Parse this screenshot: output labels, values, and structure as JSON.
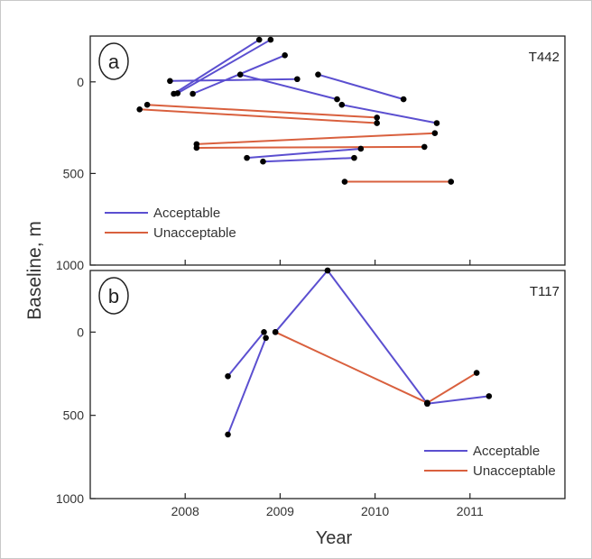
{
  "chart_data": {
    "type": "line",
    "xlabel": "Year",
    "ylabel": "Baseline, m",
    "xlim": [
      2007,
      2012
    ],
    "xticks": [
      "2008",
      "2009",
      "2010",
      "2011"
    ],
    "grid": false,
    "series": [
      {
        "name": "Acceptable",
        "color": "#5b4fd0"
      },
      {
        "name": "Unacceptable",
        "color": "#d9603e"
      }
    ],
    "panels": [
      {
        "label": "a",
        "title": "T442",
        "ylim": [
          -250,
          1000
        ],
        "yticks": [
          "0",
          "500",
          "1000"
        ],
        "legend": "bottom-left",
        "pairs": [
          {
            "x1": 2007.88,
            "y1": 65,
            "x2": 2008.78,
            "y2": -230,
            "type": "Acceptable"
          },
          {
            "x1": 2007.92,
            "y1": 62,
            "x2": 2008.9,
            "y2": -230,
            "type": "Acceptable"
          },
          {
            "x1": 2008.08,
            "y1": 65,
            "x2": 2009.05,
            "y2": -145,
            "type": "Acceptable"
          },
          {
            "x1": 2007.84,
            "y1": -5,
            "x2": 2009.18,
            "y2": -15,
            "type": "Acceptable"
          },
          {
            "x1": 2008.58,
            "y1": -40,
            "x2": 2009.6,
            "y2": 95,
            "type": "Acceptable"
          },
          {
            "x1": 2009.4,
            "y1": -40,
            "x2": 2010.3,
            "y2": 95,
            "type": "Acceptable"
          },
          {
            "x1": 2009.65,
            "y1": 125,
            "x2": 2010.65,
            "y2": 225,
            "type": "Acceptable"
          },
          {
            "x1": 2008.65,
            "y1": 415,
            "x2": 2009.85,
            "y2": 365,
            "type": "Acceptable"
          },
          {
            "x1": 2008.82,
            "y1": 435,
            "x2": 2009.78,
            "y2": 415,
            "type": "Acceptable"
          },
          {
            "x1": 2007.6,
            "y1": 125,
            "x2": 2010.02,
            "y2": 195,
            "type": "Unacceptable"
          },
          {
            "x1": 2007.52,
            "y1": 150,
            "x2": 2010.02,
            "y2": 225,
            "type": "Unacceptable"
          },
          {
            "x1": 2008.12,
            "y1": 340,
            "x2": 2010.63,
            "y2": 280,
            "type": "Unacceptable"
          },
          {
            "x1": 2008.12,
            "y1": 360,
            "x2": 2010.52,
            "y2": 355,
            "type": "Unacceptable"
          },
          {
            "x1": 2009.68,
            "y1": 545,
            "x2": 2010.8,
            "y2": 545,
            "type": "Unacceptable"
          }
        ]
      },
      {
        "label": "b",
        "title": "T117",
        "ylim": [
          -370,
          1000
        ],
        "yticks": [
          "0",
          "500",
          "1000"
        ],
        "legend": "bottom-right",
        "pairs": [
          {
            "x1": 2008.45,
            "y1": 265,
            "x2": 2008.83,
            "y2": 0,
            "type": "Acceptable"
          },
          {
            "x1": 2008.45,
            "y1": 615,
            "x2": 2008.85,
            "y2": 35,
            "type": "Acceptable"
          },
          {
            "x1": 2008.95,
            "y1": 0,
            "x2": 2009.5,
            "y2": -370,
            "type": "Acceptable"
          },
          {
            "x1": 2009.5,
            "y1": -370,
            "x2": 2010.55,
            "y2": 430,
            "type": "Acceptable"
          },
          {
            "x1": 2010.55,
            "y1": 430,
            "x2": 2011.2,
            "y2": 385,
            "type": "Acceptable"
          },
          {
            "x1": 2008.95,
            "y1": 0,
            "x2": 2010.55,
            "y2": 425,
            "type": "Unacceptable"
          },
          {
            "x1": 2010.55,
            "y1": 425,
            "x2": 2011.07,
            "y2": 245,
            "type": "Unacceptable"
          }
        ]
      }
    ]
  }
}
